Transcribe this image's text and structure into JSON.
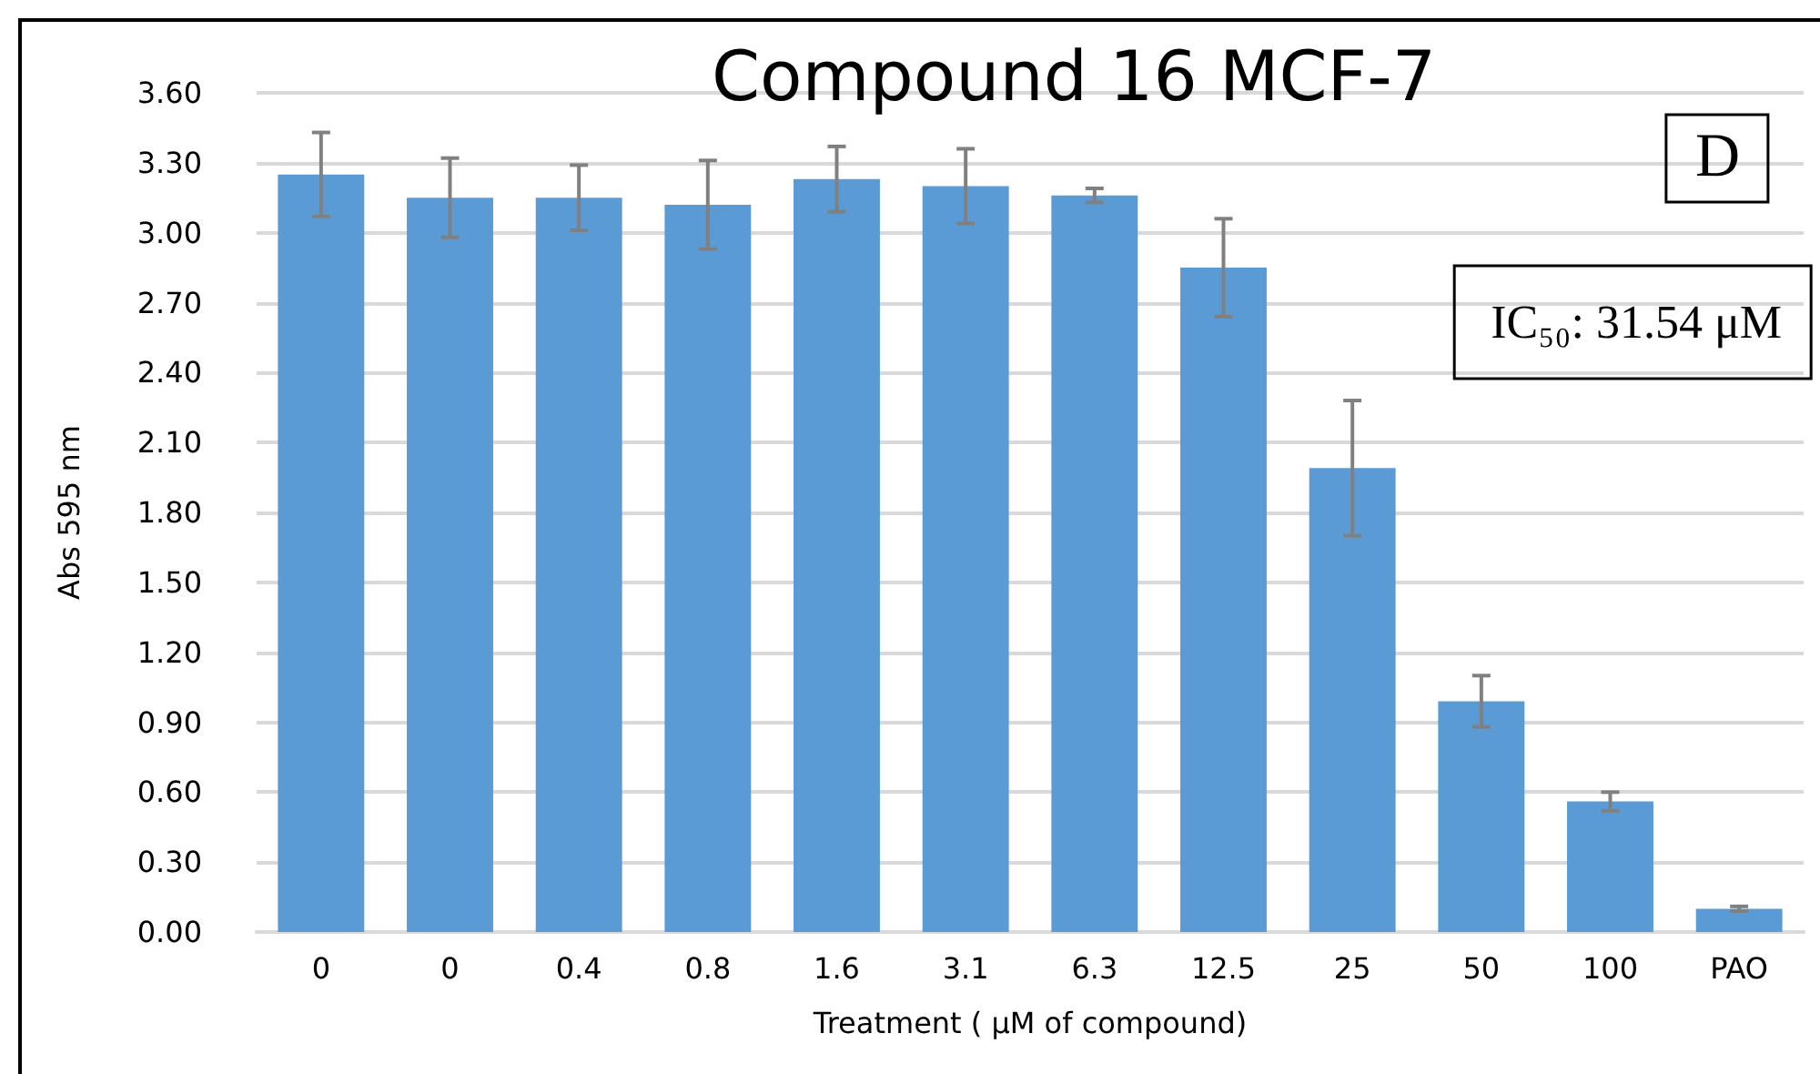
{
  "chart_data": {
    "type": "bar",
    "title": "Compound 16 MCF-7",
    "xlabel": "Treatment ( µM of compound)",
    "ylabel": "Abs 595 nm",
    "categories": [
      "0",
      "0",
      "0.4",
      "0.8",
      "1.6",
      "3.1",
      "6.3",
      "12.5",
      "25",
      "50",
      "100",
      "PAO"
    ],
    "values": [
      3.25,
      3.15,
      3.15,
      3.12,
      3.23,
      3.2,
      3.16,
      2.85,
      1.99,
      0.99,
      0.56,
      0.1
    ],
    "errors": [
      0.18,
      0.17,
      0.14,
      0.19,
      0.14,
      0.16,
      0.03,
      0.21,
      0.29,
      0.11,
      0.04,
      0.01
    ],
    "color": "#5b9bd5",
    "ylim": [
      0,
      3.6
    ],
    "yticks": [
      {
        "value": 0,
        "label": "0.00"
      },
      {
        "value": 0.3,
        "label": "0.30"
      },
      {
        "value": 0.6,
        "label": "0.60"
      },
      {
        "value": 0.9,
        "label": "0.90"
      },
      {
        "value": 1.2,
        "label": "1.20"
      },
      {
        "value": 1.5,
        "label": "1.50"
      },
      {
        "value": 1.8,
        "label": "1.80"
      },
      {
        "value": 2.1,
        "label": "2.10"
      },
      {
        "value": 2.4,
        "label": "2.40"
      },
      {
        "value": 2.7,
        "label": "2.70"
      },
      {
        "value": 3.0,
        "label": "3.00"
      },
      {
        "value": 3.3,
        "label": "3.30"
      },
      {
        "value": 3.6,
        "label": "3.60"
      }
    ],
    "grid": "y",
    "annotations": [
      "D",
      "IC₅₀: 31.54 μM"
    ]
  }
}
